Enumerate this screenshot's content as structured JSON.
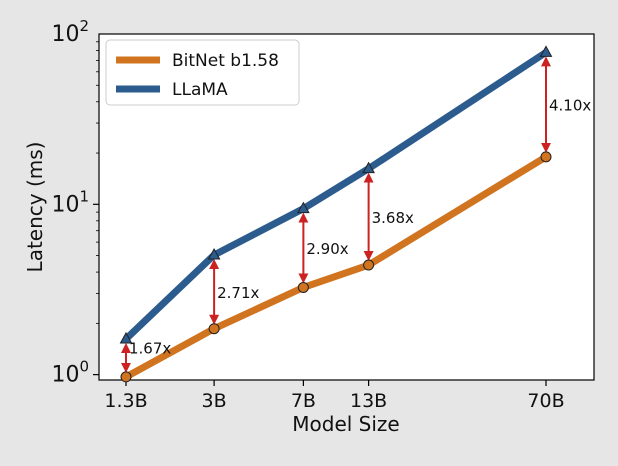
{
  "chart_data": {
    "type": "line",
    "title": "",
    "xlabel": "Model Size",
    "ylabel": "Latency (ms)",
    "y_scale": "log",
    "ylim": [
      0.93,
      100
    ],
    "x_scale": "log",
    "categories": [
      "1.3B",
      "3B",
      "7B",
      "13B",
      "70B"
    ],
    "x": [
      1.3,
      3,
      7,
      13,
      70
    ],
    "y_ticks": [
      {
        "value": 1,
        "base": "10",
        "exp": "0"
      },
      {
        "value": 10,
        "base": "10",
        "exp": "1"
      },
      {
        "value": 100,
        "base": "10",
        "exp": "2"
      }
    ],
    "series": [
      {
        "name": "BitNet b1.58",
        "color": "#d1741f",
        "marker": "circle",
        "values": [
          0.97,
          1.86,
          3.25,
          4.4,
          19.0
        ]
      },
      {
        "name": "LLaMA",
        "color": "#2c5b8e",
        "marker": "triangle",
        "values": [
          1.62,
          5.04,
          9.43,
          16.2,
          78.0
        ]
      }
    ],
    "speedups": [
      "1.67x",
      "2.71x",
      "2.90x",
      "3.68x",
      "4.10x"
    ],
    "arrow_color": "#cc2222",
    "legend_position": "top-left",
    "grid": false
  }
}
